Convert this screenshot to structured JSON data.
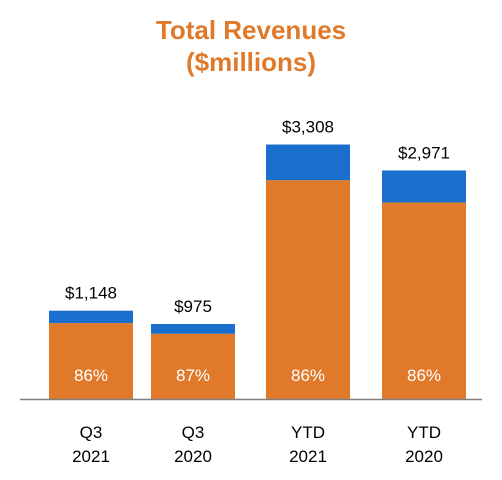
{
  "chart_data": {
    "type": "bar",
    "stacked": true,
    "title": [
      "Total Revenues",
      "($millions)"
    ],
    "categories": [
      [
        "Q3",
        "2021"
      ],
      [
        "Q3",
        "2020"
      ],
      [
        "YTD",
        "2021"
      ],
      [
        "YTD",
        "2020"
      ]
    ],
    "totals": [
      1148,
      975,
      3308,
      2971
    ],
    "total_labels": [
      "$1,148",
      "$975",
      "$3,308",
      "$2,971"
    ],
    "share_labels": [
      "86%",
      "87%",
      "86%",
      "86%"
    ],
    "series": [
      {
        "values": [
          987,
          848,
          2845,
          2555
        ],
        "color": "#e07a2a"
      },
      {
        "values": [
          161,
          127,
          463,
          416
        ],
        "color": "#1a6fce"
      }
    ],
    "ylim": [
      0,
      3900
    ],
    "grid": false,
    "legend": "none",
    "colors": {
      "title": "#e07a2a",
      "bottom_segment": "#e07a2a",
      "top_segment": "#1a6fce",
      "inner_label": "#ffffff",
      "axis": "#7f7f7f",
      "text": "#000000"
    }
  }
}
